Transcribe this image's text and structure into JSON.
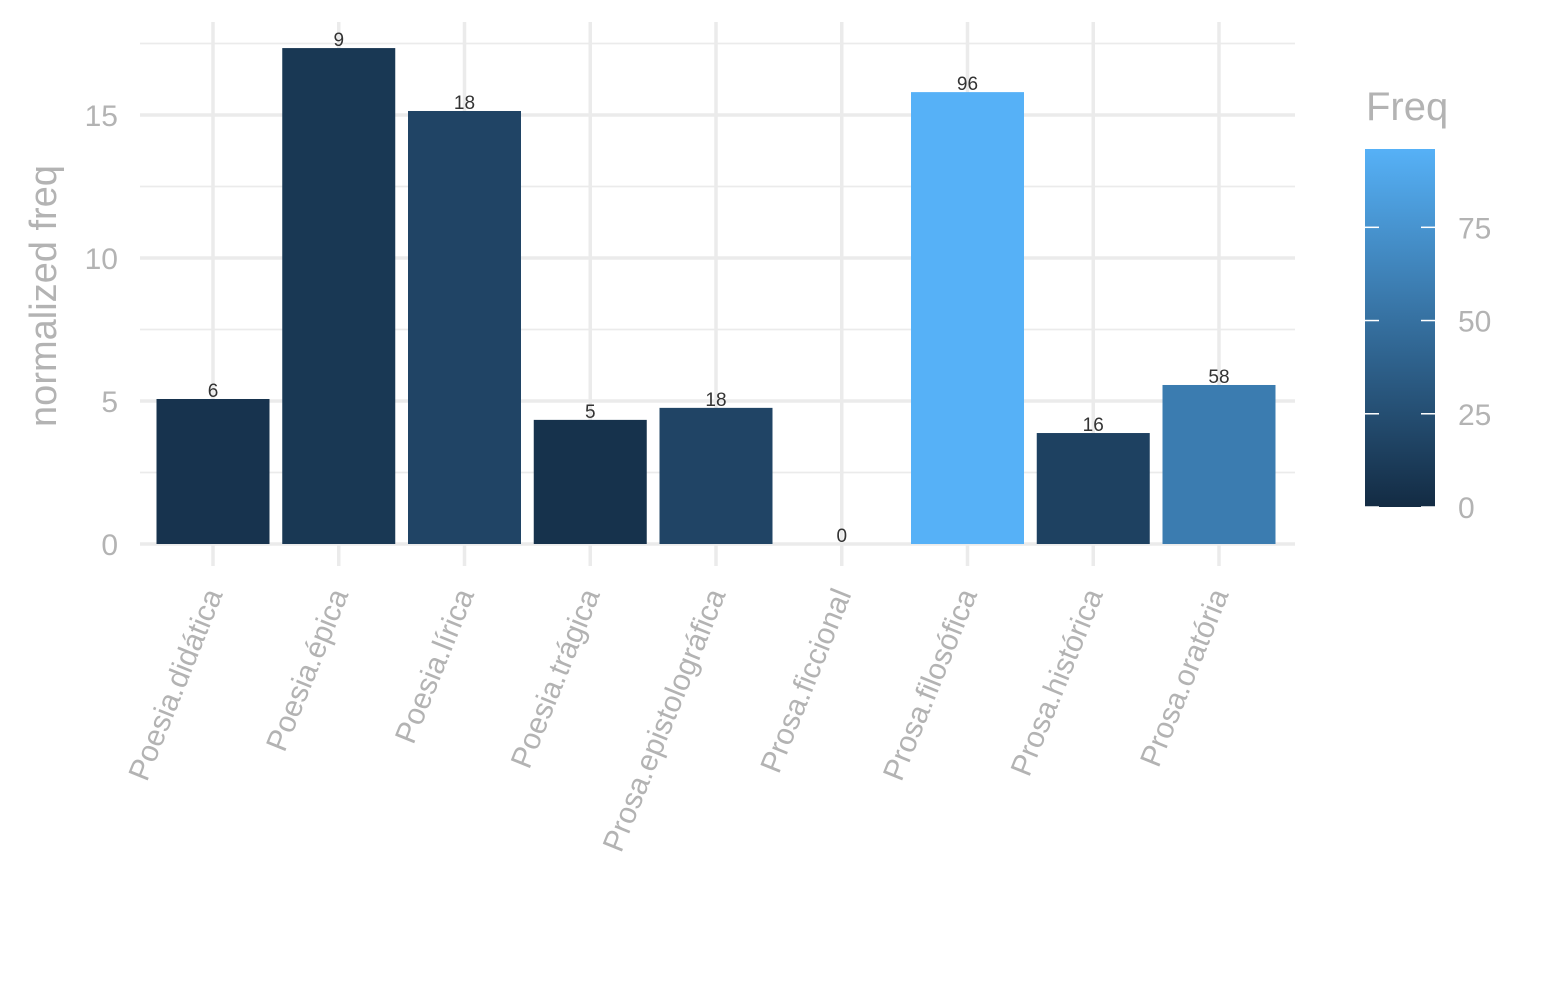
{
  "chart_data": {
    "type": "bar",
    "title": "",
    "xlabel": "",
    "ylabel": "normalized freq",
    "categories": [
      "Poesia.didática",
      "Poesia.épica",
      "Poesia.lírica",
      "Poesia.trágica",
      "Prosa.epistolográfica",
      "Prosa.ficcional",
      "Prosa.filosófica",
      "Prosa.histórica",
      "Prosa.oratória"
    ],
    "values": [
      5.07,
      17.34,
      15.14,
      4.34,
      4.76,
      0,
      15.8,
      3.88,
      5.56
    ],
    "labels": [
      "6",
      "9",
      "18",
      "5",
      "18",
      "0",
      "96",
      "16",
      "58"
    ],
    "fill_values": [
      6,
      9,
      18,
      5,
      18,
      0,
      96,
      16,
      58
    ],
    "ylim": [
      0,
      18.2
    ],
    "yticks": [
      0,
      5,
      10,
      15
    ],
    "grid": true,
    "legend": {
      "title": "Freq",
      "position": "right",
      "type": "colorbar",
      "limits": [
        0,
        96
      ],
      "ticks": [
        0,
        25,
        50,
        75
      ],
      "low_color": "#132B43",
      "high_color": "#56B1F7"
    }
  }
}
